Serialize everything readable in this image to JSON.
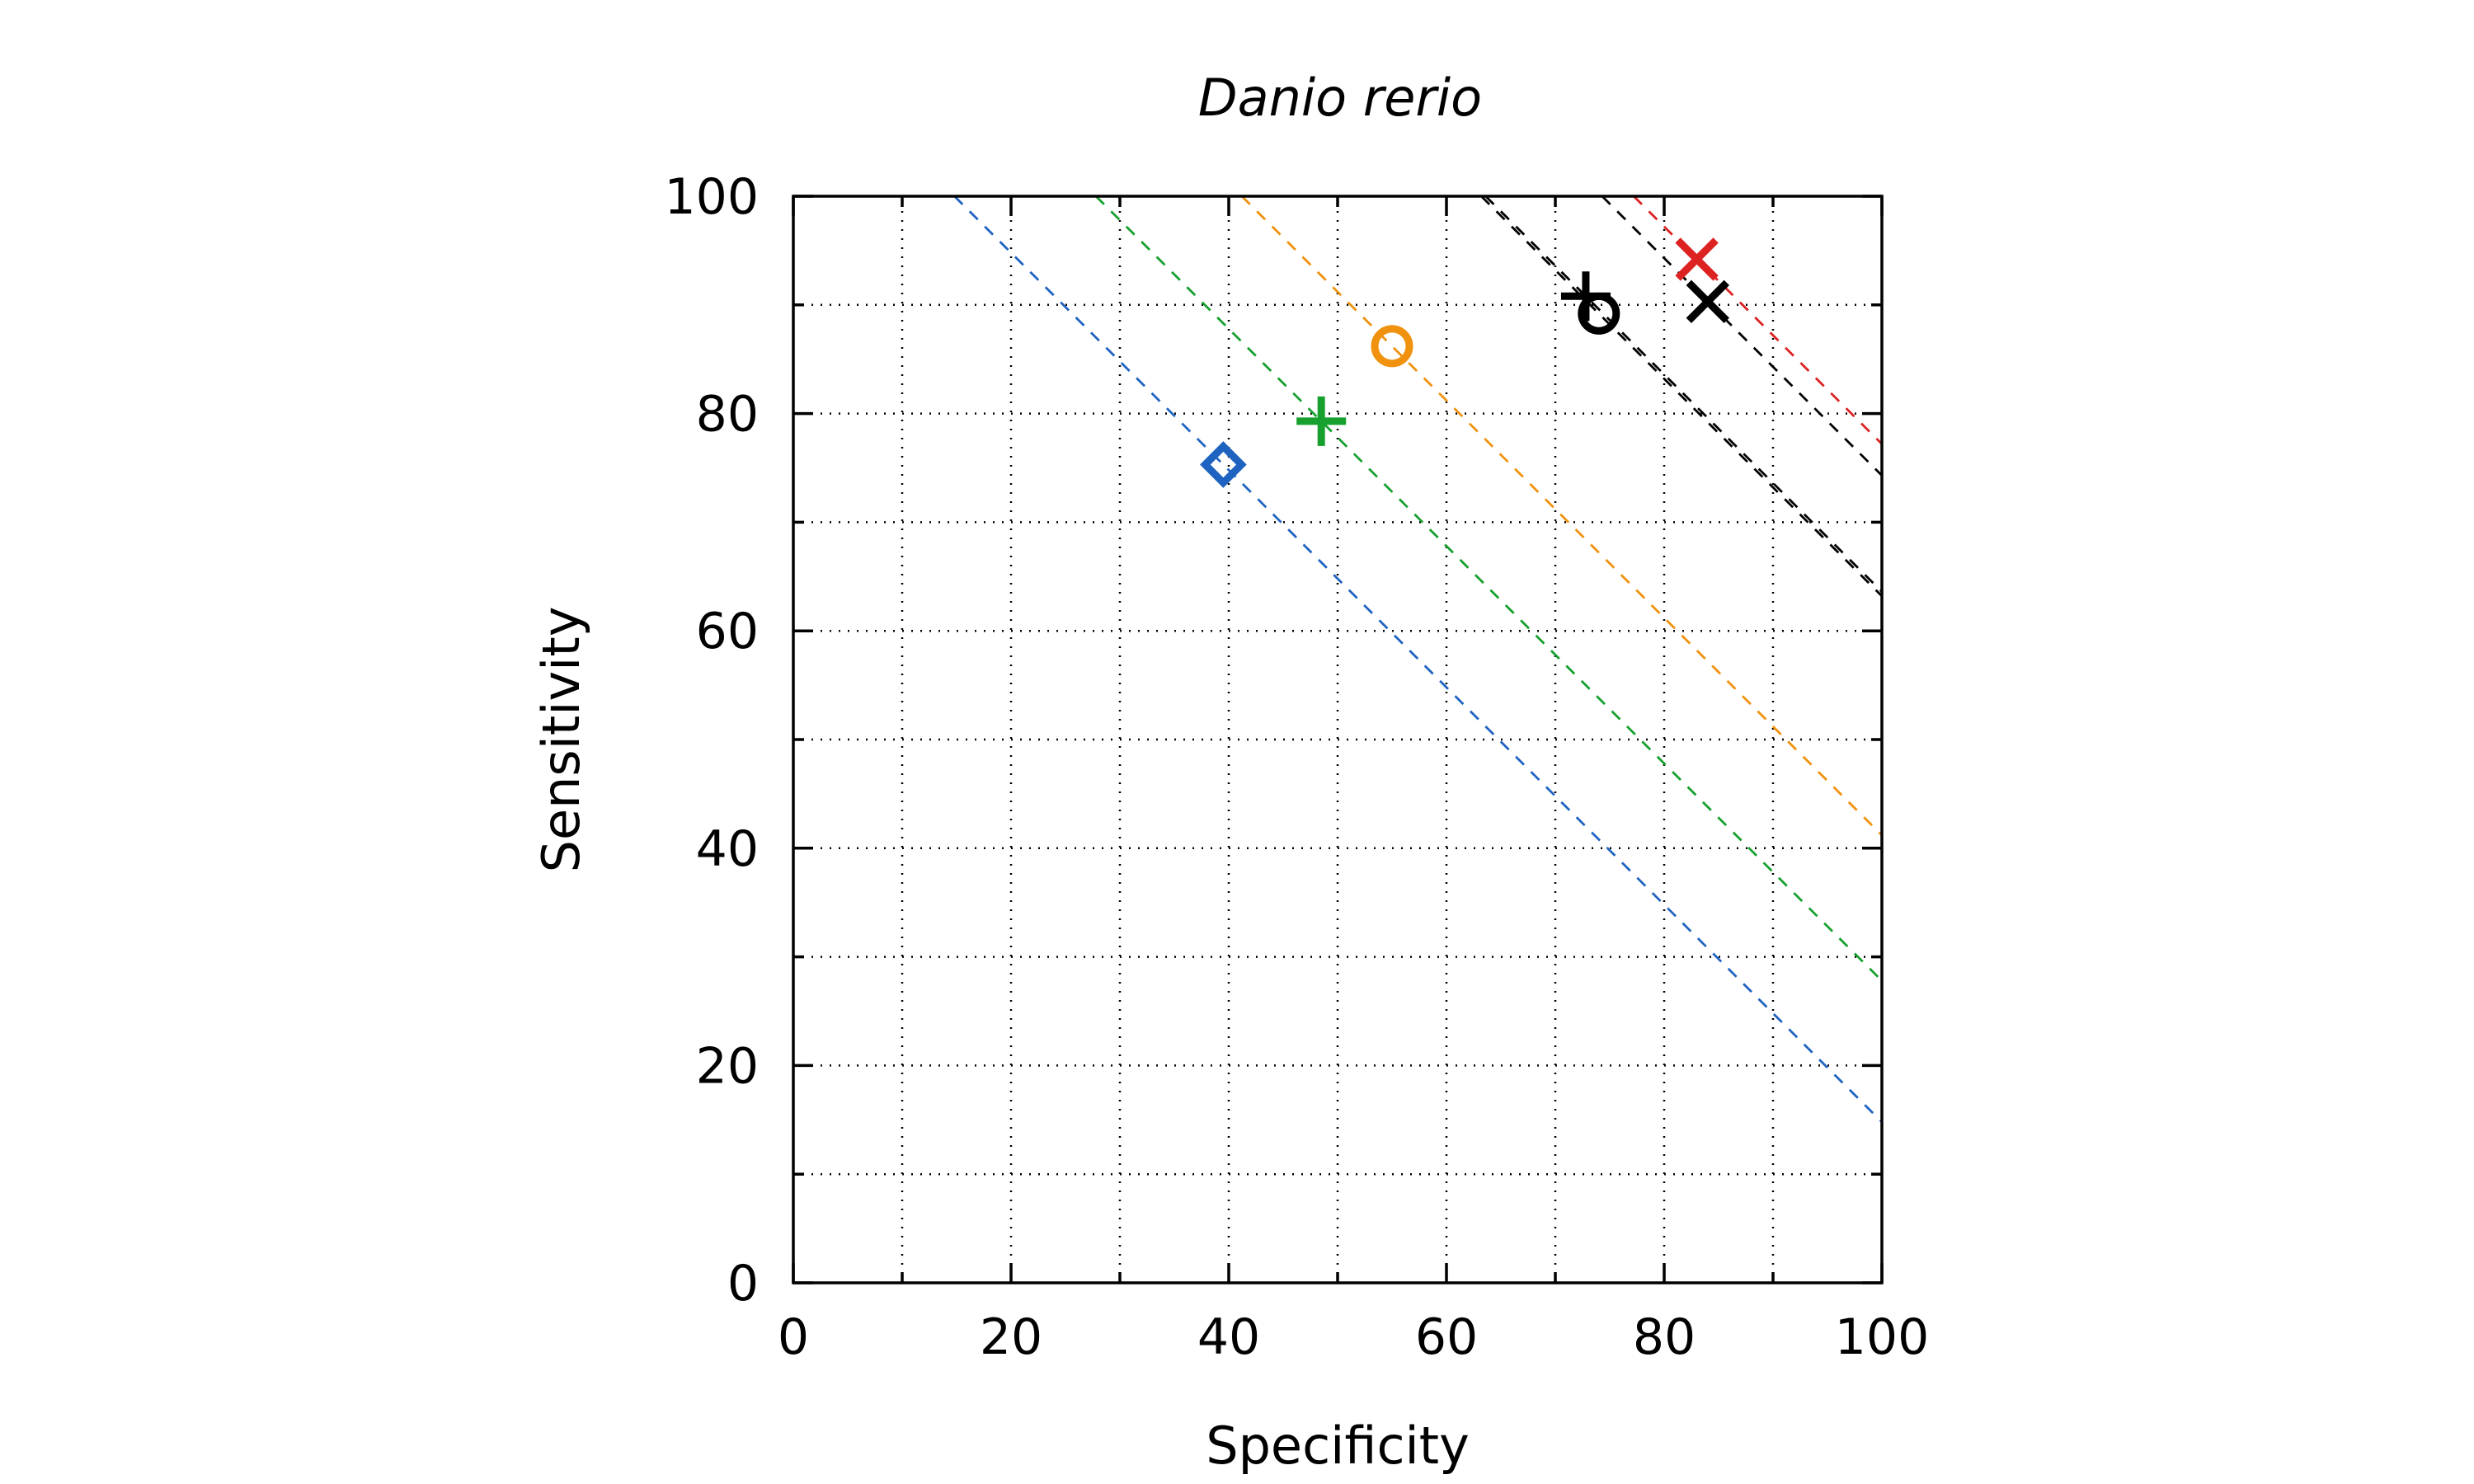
{
  "chart_data": {
    "type": "scatter",
    "title": "Danio rerio",
    "xlabel": "Specificity",
    "ylabel": "Sensitivity",
    "xlim": [
      0,
      100
    ],
    "ylim": [
      0,
      100
    ],
    "xticks": [
      "0",
      "20",
      "40",
      "60",
      "80",
      "100"
    ],
    "yticks": [
      "0",
      "20",
      "40",
      "60",
      "80",
      "100"
    ],
    "xtick_values": [
      0,
      20,
      40,
      60,
      80,
      100
    ],
    "ytick_values": [
      0,
      20,
      40,
      60,
      80,
      100
    ],
    "minor_tick_step": 10,
    "grid": true,
    "points": [
      {
        "marker": "diamond",
        "color": "#1f63c1",
        "x": 39.5,
        "y": 75.3
      },
      {
        "marker": "plus",
        "color": "#17a02e",
        "x": 48.5,
        "y": 79.3
      },
      {
        "marker": "circle",
        "color": "#f0920e",
        "x": 55.0,
        "y": 86.2
      },
      {
        "marker": "plus",
        "color": "#000000",
        "x": 72.8,
        "y": 90.8
      },
      {
        "marker": "circle",
        "color": "#000000",
        "x": 74.0,
        "y": 89.2
      },
      {
        "marker": "cross",
        "color": "#dd2222",
        "x": 83.0,
        "y": 94.2
      },
      {
        "marker": "cross",
        "color": "#000000",
        "x": 84.0,
        "y": 90.3
      }
    ],
    "iso_lines": [
      {
        "color": "#1f63c1",
        "sum": 114.8
      },
      {
        "color": "#17a02e",
        "sum": 127.8
      },
      {
        "color": "#f0920e",
        "sum": 141.2
      },
      {
        "color": "#000000",
        "sum": 163.6
      },
      {
        "color": "#000000",
        "sum": 163.2
      },
      {
        "color": "#dd2222",
        "sum": 177.2
      },
      {
        "color": "#000000",
        "sum": 174.3
      }
    ]
  }
}
